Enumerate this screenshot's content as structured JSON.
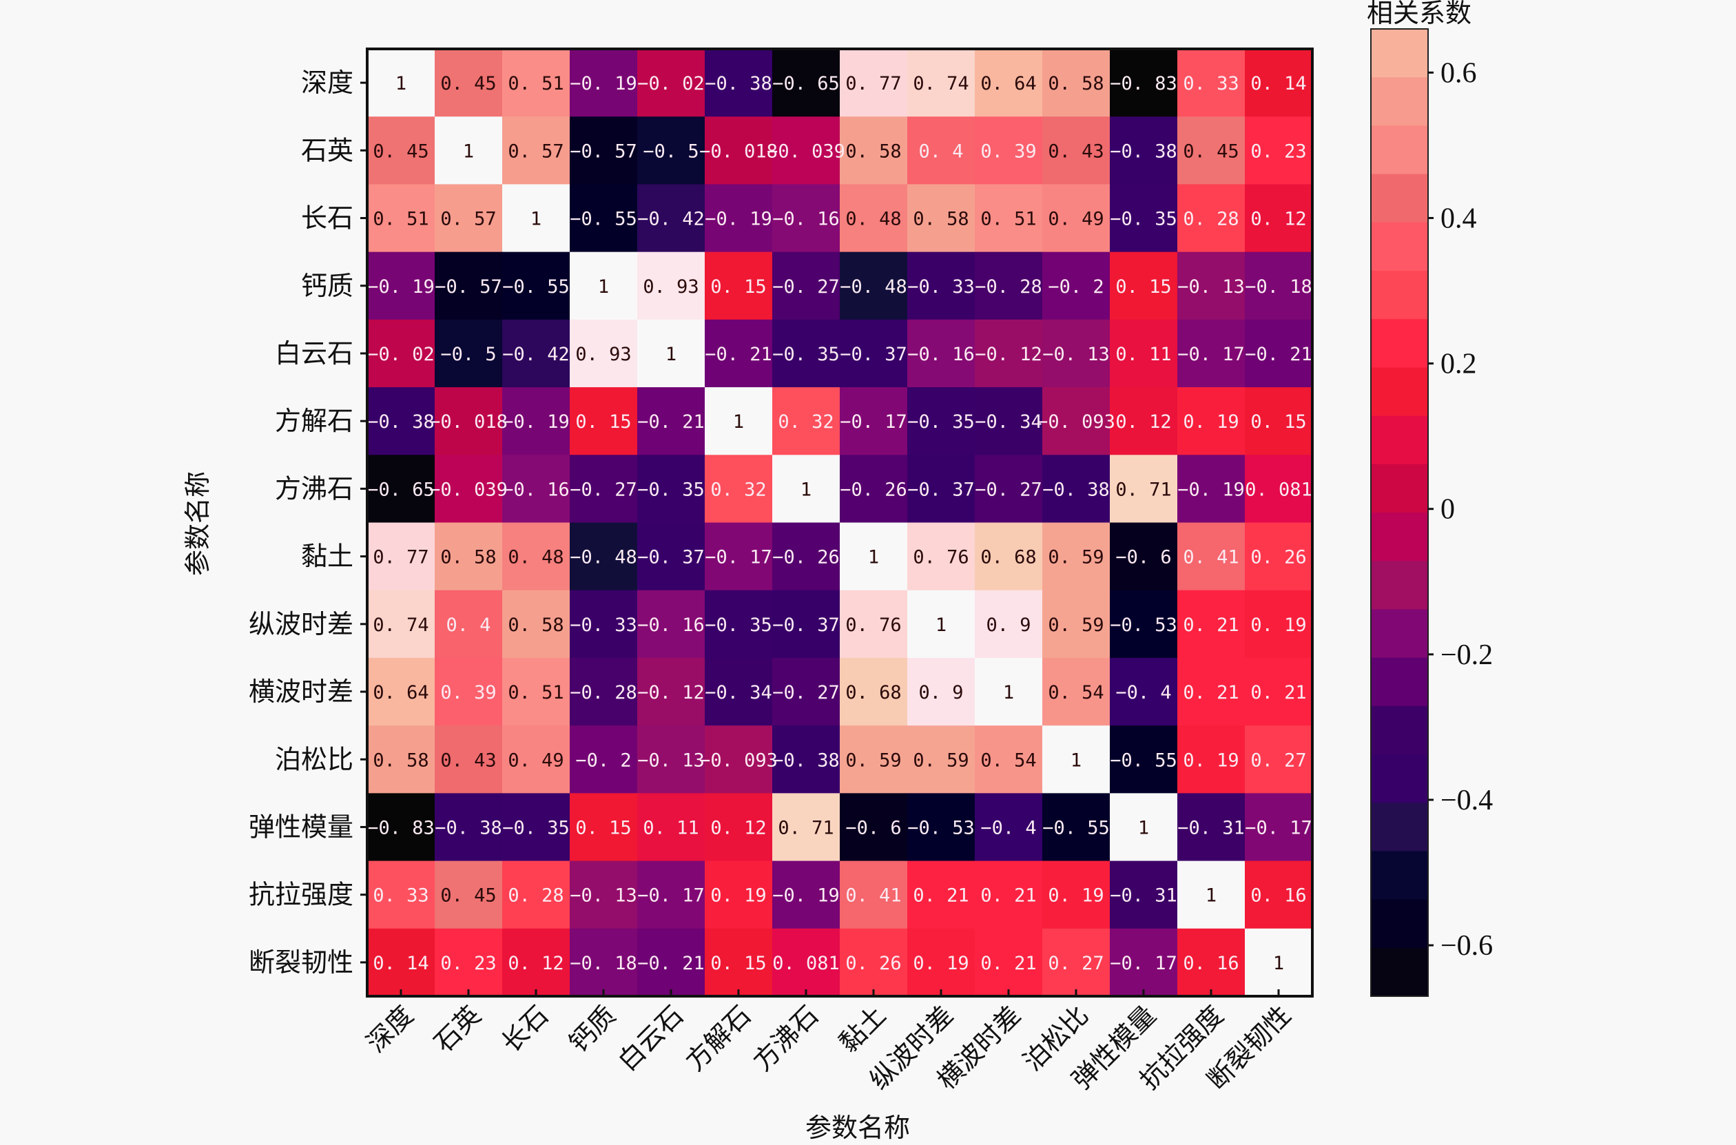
{
  "chart_data": {
    "type": "heatmap",
    "title": "",
    "xlabel": "参数名称",
    "ylabel": "参数名称",
    "x_categories": [
      "深度",
      "石英",
      "长石",
      "钙质",
      "白云石",
      "方解石",
      "方沸石",
      "黏土",
      "纵波时差",
      "横波时差",
      "泊松比",
      "弹性模量",
      "抗拉强度",
      "断裂韧性"
    ],
    "y_categories": [
      "深度",
      "石英",
      "长石",
      "钙质",
      "白云石",
      "方解石",
      "方沸石",
      "黏土",
      "纵波时差",
      "横波时差",
      "泊松比",
      "弹性模量",
      "抗拉强度",
      "断裂韧性"
    ],
    "values": [
      [
        1,
        0.45,
        0.51,
        -0.19,
        -0.02,
        -0.38,
        -0.65,
        0.77,
        0.74,
        0.64,
        0.58,
        -0.83,
        0.33,
        0.14
      ],
      [
        0.45,
        1,
        0.57,
        -0.57,
        -0.5,
        -0.018,
        -0.039,
        0.58,
        0.4,
        0.39,
        0.43,
        -0.38,
        0.45,
        0.23
      ],
      [
        0.51,
        0.57,
        1,
        -0.55,
        -0.42,
        -0.19,
        -0.16,
        0.48,
        0.58,
        0.51,
        0.49,
        -0.35,
        0.28,
        0.12
      ],
      [
        -0.19,
        -0.57,
        -0.55,
        1,
        0.93,
        0.15,
        -0.27,
        -0.48,
        -0.33,
        -0.28,
        -0.2,
        0.15,
        -0.13,
        -0.18
      ],
      [
        -0.02,
        -0.5,
        -0.42,
        0.93,
        1,
        -0.21,
        -0.35,
        -0.37,
        -0.16,
        -0.12,
        -0.13,
        0.11,
        -0.17,
        -0.21
      ],
      [
        -0.38,
        -0.018,
        -0.19,
        0.15,
        -0.21,
        1,
        0.32,
        -0.17,
        -0.35,
        -0.34,
        -0.093,
        0.12,
        0.19,
        0.15
      ],
      [
        -0.65,
        -0.039,
        -0.16,
        -0.27,
        -0.35,
        0.32,
        1,
        -0.26,
        -0.37,
        -0.27,
        -0.38,
        0.71,
        -0.19,
        0.081
      ],
      [
        0.77,
        0.58,
        0.48,
        -0.48,
        -0.37,
        -0.17,
        -0.26,
        1,
        0.76,
        0.68,
        0.59,
        -0.6,
        0.41,
        0.26
      ],
      [
        0.74,
        0.4,
        0.58,
        -0.33,
        -0.16,
        -0.35,
        -0.37,
        0.76,
        1,
        0.9,
        0.59,
        -0.53,
        0.21,
        0.19
      ],
      [
        0.64,
        0.39,
        0.51,
        -0.28,
        -0.12,
        -0.34,
        -0.27,
        0.68,
        0.9,
        1,
        0.54,
        -0.4,
        0.21,
        0.21
      ],
      [
        0.58,
        0.43,
        0.49,
        -0.2,
        -0.13,
        -0.093,
        -0.38,
        0.59,
        0.59,
        0.54,
        1,
        -0.55,
        0.19,
        0.27
      ],
      [
        -0.83,
        -0.38,
        -0.35,
        0.15,
        0.11,
        0.12,
        0.71,
        -0.6,
        -0.53,
        -0.4,
        -0.55,
        1,
        -0.31,
        -0.17
      ],
      [
        0.33,
        0.45,
        0.28,
        -0.13,
        -0.17,
        0.19,
        -0.19,
        0.41,
        0.21,
        0.21,
        0.19,
        -0.31,
        1,
        0.16
      ],
      [
        0.14,
        0.23,
        0.12,
        -0.18,
        -0.21,
        0.15,
        0.081,
        0.26,
        0.19,
        0.21,
        0.27,
        -0.17,
        0.16,
        1
      ]
    ],
    "colorbar": {
      "title": "相关系数",
      "range": [
        -0.67,
        0.66
      ],
      "ticks": [
        0.6,
        0.4,
        0.2,
        0,
        -0.2,
        -0.4,
        -0.6
      ],
      "tick_labels": [
        "0.6",
        "0.4",
        "0.2",
        "0",
        "−0.2",
        "−0.4",
        "−0.6"
      ],
      "colormap_stops": [
        {
          "v": -0.67,
          "c": "#060606"
        },
        {
          "v": -0.6,
          "c": "#06001f"
        },
        {
          "v": -0.52,
          "c": "#00002d"
        },
        {
          "v": -0.46,
          "c": "#1a1640"
        },
        {
          "v": -0.4,
          "c": "#35006a"
        },
        {
          "v": -0.3,
          "c": "#3d0067"
        },
        {
          "v": -0.22,
          "c": "#6a0074"
        },
        {
          "v": -0.16,
          "c": "#860a74"
        },
        {
          "v": -0.1,
          "c": "#a20f60"
        },
        {
          "v": -0.04,
          "c": "#bd0358"
        },
        {
          "v": 0.0,
          "c": "#c1063e"
        },
        {
          "v": 0.08,
          "c": "#e40a4c"
        },
        {
          "v": 0.14,
          "c": "#ee1731"
        },
        {
          "v": 0.22,
          "c": "#ff2343"
        },
        {
          "v": 0.3,
          "c": "#fe4a57"
        },
        {
          "v": 0.38,
          "c": "#fe5d6b"
        },
        {
          "v": 0.44,
          "c": "#ec6e6e"
        },
        {
          "v": 0.5,
          "c": "#fb8a86"
        },
        {
          "v": 0.58,
          "c": "#f5a08f"
        },
        {
          "v": 0.64,
          "c": "#f9b7a0"
        },
        {
          "v": 0.7,
          "c": "#f8d5bc"
        },
        {
          "v": 0.78,
          "c": "#fdd5dc"
        },
        {
          "v": 0.95,
          "c": "#fbe9ee"
        },
        {
          "v": 1.0,
          "c": "#f8f8f8"
        }
      ]
    },
    "grid": false,
    "legend": "colorbar-right"
  }
}
